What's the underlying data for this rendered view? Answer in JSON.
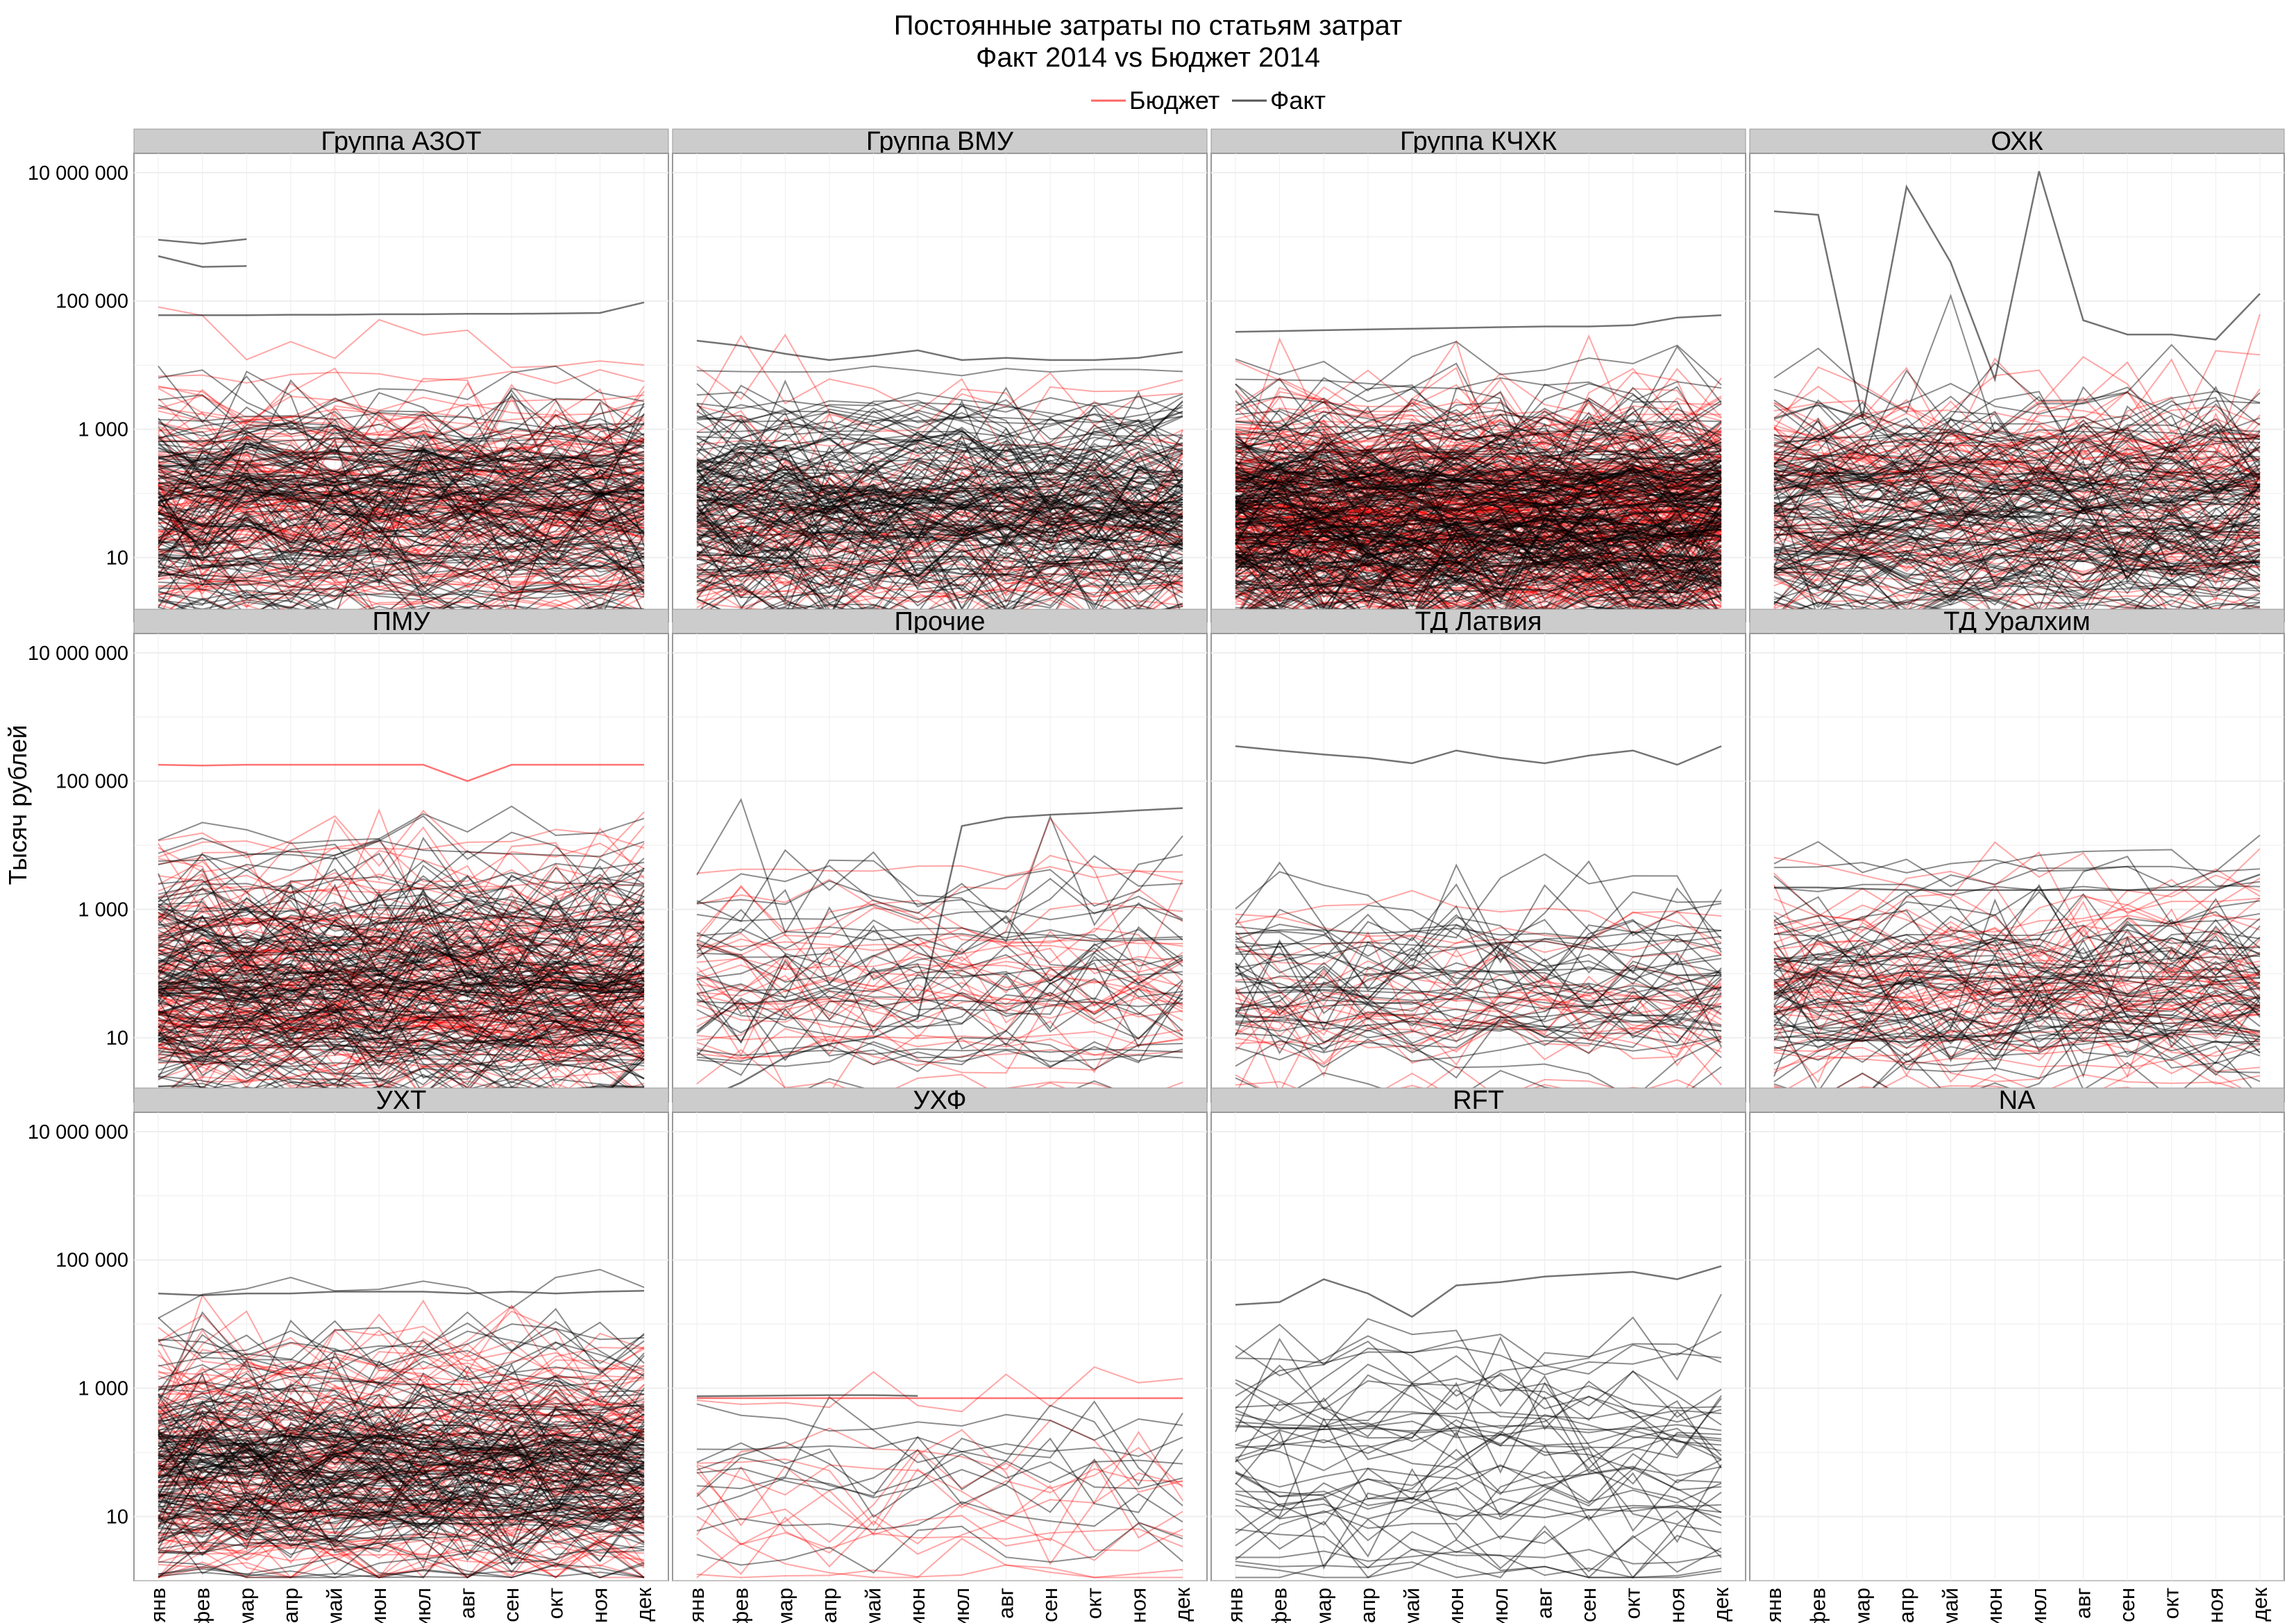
{
  "chart_data": {
    "type": "line",
    "title": "Постоянные затраты по статьям затрат",
    "subtitle": "Факт 2014 vs Бюджет 2014",
    "ylabel": "Тысяч рублей",
    "xlabel": "",
    "y_scale": "log10",
    "ylim": [
      1,
      20000000
    ],
    "yticks": [
      10,
      1000,
      100000,
      10000000
    ],
    "ytick_labels": [
      "10",
      "1 000",
      "100 000",
      "10 000 000"
    ],
    "x": [
      "янв",
      "фев",
      "мар",
      "апр",
      "май",
      "июн",
      "июл",
      "авг",
      "сен",
      "окт",
      "ноя",
      "дек"
    ],
    "grid": true,
    "legend": {
      "position": "top",
      "entries": [
        {
          "name": "Бюджет",
          "color": "#ff0000"
        },
        {
          "name": "Факт",
          "color": "#000000"
        }
      ]
    },
    "facet_layout": {
      "rows": 3,
      "cols": 4
    },
    "facets": [
      {
        "name": "Группа АЗОТ",
        "notable_series": [
          {
            "name": "Факт",
            "values": [
              900000,
              780000,
              920000,
              null,
              null,
              null,
              null,
              null,
              null,
              null,
              null,
              null
            ]
          },
          {
            "name": "Факт",
            "values": [
              500000,
              340000,
              350000,
              null,
              null,
              null,
              null,
              null,
              null,
              null,
              null,
              null
            ]
          },
          {
            "name": "Факт",
            "values": [
              60000,
              60000,
              60000,
              61000,
              61000,
              62000,
              62000,
              63000,
              63000,
              64000,
              65000,
              95000
            ]
          }
        ],
        "est_series_count": {
          "Бюджет": 110,
          "Факт": 130
        }
      },
      {
        "name": "Группа ВМУ",
        "notable_series": [
          {
            "name": "Факт",
            "values": [
              24000,
              20000,
              15000,
              12000,
              14000,
              17000,
              12000,
              13000,
              12000,
              12000,
              13000,
              16000
            ]
          }
        ],
        "est_series_count": {
          "Бюджет": 60,
          "Факт": 150
        }
      },
      {
        "name": "Группа КЧХК",
        "notable_series": [
          {
            "name": "Факт",
            "values": [
              33000,
              34000,
              35000,
              36000,
              37000,
              38000,
              39000,
              40000,
              40000,
              42000,
              55000,
              60000
            ]
          }
        ],
        "est_series_count": {
          "Бюджет": 220,
          "Факт": 220
        }
      },
      {
        "name": "ОХК",
        "notable_series": [
          {
            "name": "Факт",
            "values": [
              2500000,
              2200000,
              1500,
              6000000,
              400000,
              6000,
              10500000,
              50000,
              30000,
              30000,
              25000,
              130000
            ]
          }
        ],
        "est_series_count": {
          "Бюджет": 80,
          "Факт": 120
        }
      },
      {
        "name": "ПМУ",
        "notable_series": [
          {
            "name": "Бюджет",
            "values": [
              180000,
              175000,
              180000,
              180000,
              180000,
              180000,
              180000,
              100000,
              180000,
              180000,
              180000,
              180000
            ]
          }
        ],
        "est_series_count": {
          "Бюджет": 120,
          "Факт": 140
        }
      },
      {
        "name": "Прочие",
        "notable_series": [
          {
            "name": "Факт",
            "values": [
              1,
              2,
              5,
              8,
              10,
              20,
              20000,
              27000,
              30000,
              32000,
              35000,
              38000
            ]
          }
        ],
        "est_series_count": {
          "Бюджет": 30,
          "Факт": 30
        }
      },
      {
        "name": "ТД Латвия",
        "notable_series": [
          {
            "name": "Факт",
            "values": [
              350000,
              300000,
              260000,
              230000,
              190000,
              300000,
              230000,
              190000,
              250000,
              300000,
              180000,
              350000
            ]
          }
        ],
        "est_series_count": {
          "Бюджет": 25,
          "Факт": 40
        }
      },
      {
        "name": "ТД Уралхим",
        "notable_series": [
          {
            "name": "Факт",
            "values": [
              2200,
              2200,
              2100,
              2000,
              2000,
              2000,
              2000,
              2000,
              2000,
              2000,
              2000,
              3500
            ]
          }
        ],
        "est_series_count": {
          "Бюджет": 50,
          "Факт": 60
        }
      },
      {
        "name": "УХТ",
        "notable_series": [
          {
            "name": "Факт",
            "values": [
              30000,
              28000,
              30000,
              30000,
              32000,
              32000,
              32000,
              30000,
              32000,
              30000,
              32000,
              33000
            ]
          }
        ],
        "est_series_count": {
          "Бюджет": 100,
          "Факт": 140
        }
      },
      {
        "name": "УХФ",
        "notable_series": [
          {
            "name": "Факт",
            "values": [
              750,
              760,
              770,
              780,
              780,
              760,
              null,
              null,
              null,
              null,
              null,
              null
            ]
          },
          {
            "name": "Бюджет",
            "values": [
              700,
              700,
              700,
              700,
              700,
              700,
              700,
              700,
              700,
              700,
              700,
              700
            ]
          }
        ],
        "est_series_count": {
          "Бюджет": 12,
          "Факт": 10
        }
      },
      {
        "name": "RFT",
        "notable_series": [
          {
            "name": "Факт",
            "values": [
              20000,
              22000,
              50000,
              30000,
              13000,
              40000,
              45000,
              55000,
              60000,
              65000,
              50000,
              80000
            ]
          }
        ],
        "est_series_count": {
          "Бюджет": 0,
          "Факт": 40
        }
      },
      {
        "name": "NA",
        "notable_series": [],
        "est_series_count": {
          "Бюджет": 0,
          "Факт": 0
        }
      }
    ]
  }
}
